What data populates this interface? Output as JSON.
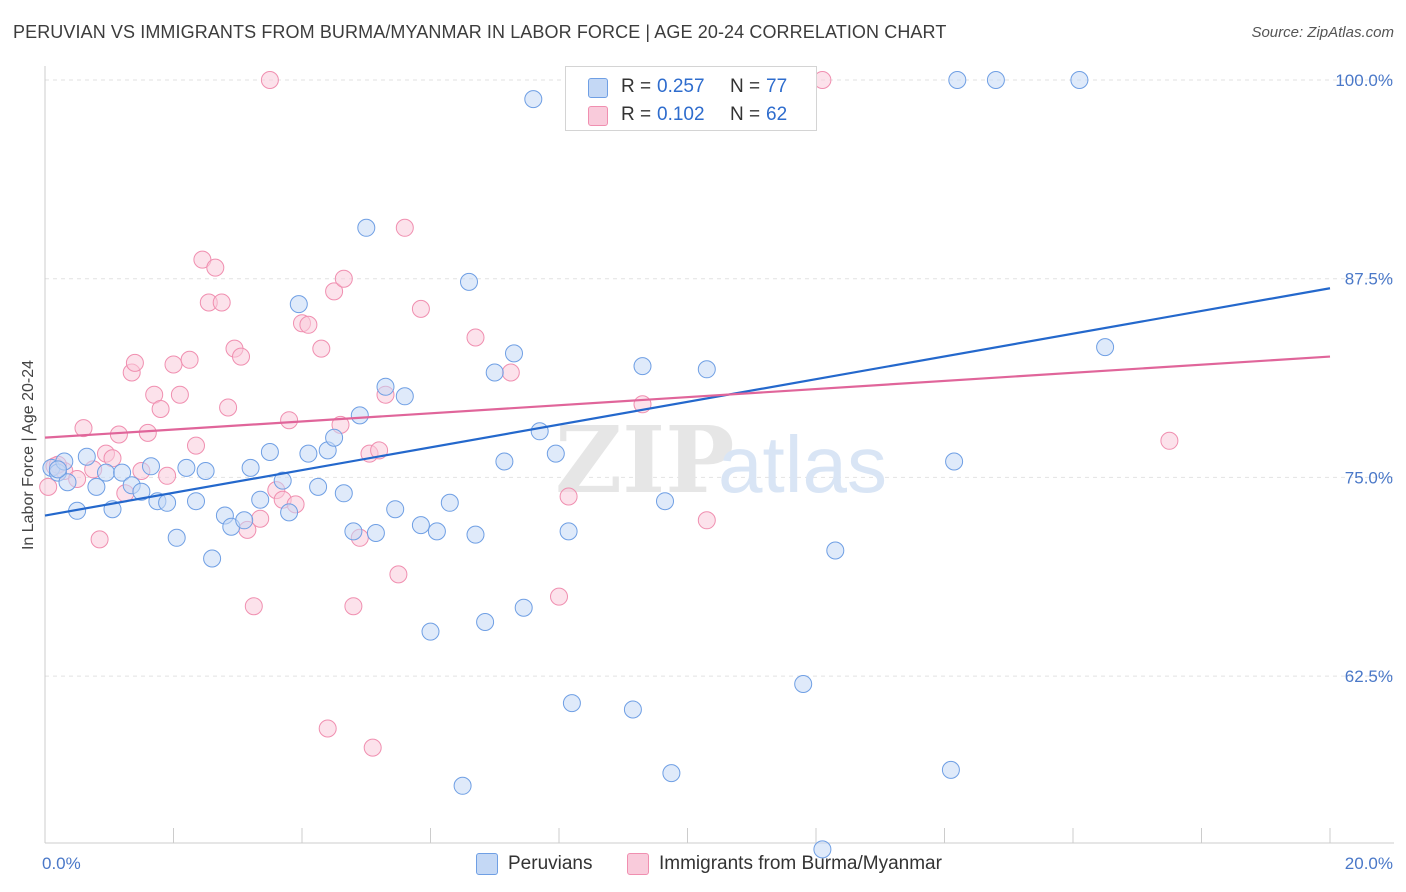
{
  "title": "PERUVIAN VS IMMIGRANTS FROM BURMA/MYANMAR IN LABOR FORCE | AGE 20-24 CORRELATION CHART",
  "source": "Source: ZipAtlas.com",
  "watermark": {
    "zip": "ZIP",
    "atlas": "atlas"
  },
  "legend": {
    "series": [
      {
        "r_label": "R =",
        "r_value": "0.257",
        "n_label": "N =",
        "n_value": "77"
      },
      {
        "r_label": "R =",
        "r_value": "0.102",
        "n_label": "N =",
        "n_value": "62"
      }
    ]
  },
  "bottom_legend": [
    "Peruvians",
    "Immigrants from Burma/Myanmar"
  ],
  "chart_data": {
    "type": "scatter",
    "ylabel": "In Labor Force | Age 20-24",
    "xlim": [
      0,
      20
    ],
    "ylim": [
      52,
      100
    ],
    "x_tick_labels": [
      "0.0%",
      "20.0%"
    ],
    "y_ticks": [
      62.5,
      75.0,
      87.5,
      100.0
    ],
    "y_tick_labels": [
      "62.5%",
      "75.0%",
      "87.5%",
      "100.0%"
    ],
    "grid": true,
    "colors": {
      "peruvians": "#6f9fe4",
      "burma": "#f08fb0",
      "peruvians_line": "#2468cc",
      "burma_line": "#e0659a"
    },
    "series": [
      {
        "name": "Peruvians",
        "trend": {
          "x": [
            0,
            20
          ],
          "y": [
            72.6,
            86.9
          ]
        },
        "points": [
          [
            0.1,
            75.6
          ],
          [
            0.2,
            75.3
          ],
          [
            0.3,
            76.0
          ],
          [
            0.35,
            74.7
          ],
          [
            0.5,
            72.9
          ],
          [
            0.65,
            76.3
          ],
          [
            0.8,
            74.4
          ],
          [
            0.95,
            75.3
          ],
          [
            1.05,
            73.0
          ],
          [
            1.2,
            75.3
          ],
          [
            1.35,
            74.5
          ],
          [
            1.5,
            74.1
          ],
          [
            1.65,
            75.7
          ],
          [
            1.75,
            73.5
          ],
          [
            1.9,
            73.4
          ],
          [
            2.05,
            71.2
          ],
          [
            2.2,
            75.6
          ],
          [
            2.35,
            73.5
          ],
          [
            2.5,
            75.4
          ],
          [
            2.6,
            69.9
          ],
          [
            2.8,
            72.6
          ],
          [
            2.9,
            71.9
          ],
          [
            3.1,
            72.3
          ],
          [
            3.2,
            75.6
          ],
          [
            3.35,
            73.6
          ],
          [
            3.5,
            76.6
          ],
          [
            3.7,
            74.8
          ],
          [
            3.8,
            72.8
          ],
          [
            3.95,
            85.9
          ],
          [
            4.1,
            76.5
          ],
          [
            4.25,
            74.4
          ],
          [
            4.4,
            76.7
          ],
          [
            4.5,
            77.5
          ],
          [
            4.65,
            74.0
          ],
          [
            4.8,
            71.6
          ],
          [
            4.9,
            78.9
          ],
          [
            5.0,
            90.7
          ],
          [
            5.15,
            71.5
          ],
          [
            5.3,
            80.7
          ],
          [
            5.45,
            73.0
          ],
          [
            5.6,
            80.1
          ],
          [
            5.85,
            72.0
          ],
          [
            6.0,
            65.3
          ],
          [
            6.1,
            71.6
          ],
          [
            6.3,
            73.4
          ],
          [
            6.5,
            55.6
          ],
          [
            6.6,
            87.3
          ],
          [
            6.7,
            71.4
          ],
          [
            6.85,
            65.9
          ],
          [
            7.0,
            81.6
          ],
          [
            7.15,
            76.0
          ],
          [
            7.3,
            82.8
          ],
          [
            7.45,
            66.8
          ],
          [
            7.6,
            98.8
          ],
          [
            7.7,
            77.9
          ],
          [
            7.95,
            76.5
          ],
          [
            8.15,
            71.6
          ],
          [
            8.2,
            60.8
          ],
          [
            8.6,
            100.0
          ],
          [
            9.0,
            100.0
          ],
          [
            9.15,
            60.4
          ],
          [
            9.3,
            82.0
          ],
          [
            9.65,
            73.5
          ],
          [
            9.75,
            56.4
          ],
          [
            10.2,
            100.0
          ],
          [
            10.3,
            81.8
          ],
          [
            11.2,
            100.0
          ],
          [
            11.8,
            62.0
          ],
          [
            12.1,
            51.6
          ],
          [
            12.3,
            70.4
          ],
          [
            14.1,
            56.6
          ],
          [
            14.15,
            76.0
          ],
          [
            14.2,
            100.0
          ],
          [
            14.8,
            100.0
          ],
          [
            16.1,
            100.0
          ],
          [
            16.5,
            83.2
          ],
          [
            0.2,
            75.5
          ]
        ]
      },
      {
        "name": "Immigrants from Burma/Myanmar",
        "trend": {
          "x": [
            0,
            20
          ],
          "y": [
            77.5,
            82.6
          ]
        },
        "points": [
          [
            0.05,
            74.4
          ],
          [
            0.15,
            75.7
          ],
          [
            0.3,
            75.4
          ],
          [
            0.5,
            74.9
          ],
          [
            0.6,
            78.1
          ],
          [
            0.75,
            75.5
          ],
          [
            0.85,
            71.1
          ],
          [
            0.95,
            76.5
          ],
          [
            1.05,
            76.2
          ],
          [
            1.15,
            77.7
          ],
          [
            1.25,
            74.0
          ],
          [
            1.35,
            81.6
          ],
          [
            1.4,
            82.2
          ],
          [
            1.5,
            75.4
          ],
          [
            1.6,
            77.8
          ],
          [
            1.7,
            80.2
          ],
          [
            1.8,
            79.3
          ],
          [
            1.9,
            75.1
          ],
          [
            2.0,
            82.1
          ],
          [
            2.1,
            80.2
          ],
          [
            2.25,
            82.4
          ],
          [
            2.35,
            77.0
          ],
          [
            2.45,
            88.7
          ],
          [
            2.55,
            86.0
          ],
          [
            2.65,
            88.2
          ],
          [
            2.75,
            86.0
          ],
          [
            2.85,
            79.4
          ],
          [
            2.95,
            83.1
          ],
          [
            3.05,
            82.6
          ],
          [
            3.15,
            71.7
          ],
          [
            3.25,
            66.9
          ],
          [
            3.35,
            72.4
          ],
          [
            3.5,
            100.0
          ],
          [
            3.6,
            74.2
          ],
          [
            3.7,
            73.6
          ],
          [
            3.8,
            78.6
          ],
          [
            3.9,
            73.3
          ],
          [
            4.0,
            84.7
          ],
          [
            4.1,
            84.6
          ],
          [
            4.3,
            83.1
          ],
          [
            4.4,
            59.2
          ],
          [
            4.5,
            86.7
          ],
          [
            4.6,
            78.3
          ],
          [
            4.65,
            87.5
          ],
          [
            4.8,
            66.9
          ],
          [
            4.9,
            71.2
          ],
          [
            5.05,
            76.5
          ],
          [
            5.1,
            58.0
          ],
          [
            5.2,
            76.7
          ],
          [
            5.3,
            80.2
          ],
          [
            5.5,
            68.9
          ],
          [
            5.6,
            90.7
          ],
          [
            5.85,
            85.6
          ],
          [
            6.7,
            83.8
          ],
          [
            7.25,
            81.6
          ],
          [
            8.0,
            67.5
          ],
          [
            8.15,
            73.8
          ],
          [
            9.3,
            79.6
          ],
          [
            10.3,
            72.3
          ],
          [
            12.1,
            100.0
          ],
          [
            17.5,
            77.3
          ],
          [
            0.2,
            75.8
          ]
        ]
      }
    ]
  }
}
